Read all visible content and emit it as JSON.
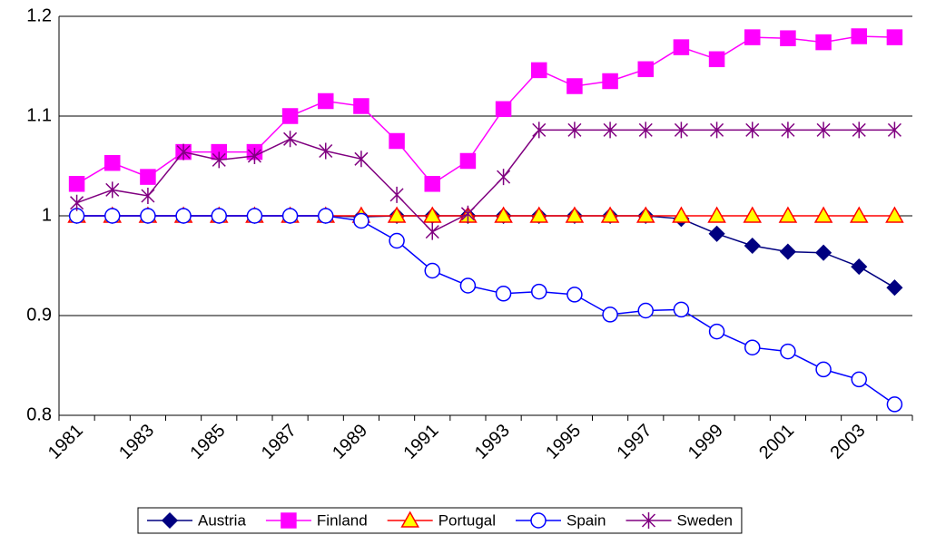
{
  "chart_data": {
    "type": "line",
    "categories": [
      "1981",
      null,
      "1983",
      null,
      "1985",
      null,
      "1987",
      null,
      "1989",
      null,
      "1991",
      null,
      "1993",
      null,
      "1995",
      null,
      "1997",
      null,
      "1999",
      null,
      "2001",
      null,
      "2003",
      null
    ],
    "series": [
      {
        "name": "Austria",
        "color": "#000080",
        "marker": "diamond",
        "marker_fill": "#000080",
        "values": [
          1,
          1,
          1,
          1,
          1,
          1,
          1,
          1,
          0.999,
          1,
          1,
          1,
          1,
          1,
          1,
          1,
          1,
          0.997,
          0.982,
          0.97,
          0.964,
          0.963,
          0.949,
          0.928
        ]
      },
      {
        "name": "Finland",
        "color": "#ff00ff",
        "marker": "square",
        "marker_fill": "#ff00ff",
        "values": [
          1.032,
          1.053,
          1.039,
          1.064,
          1.064,
          1.064,
          1.1,
          1.115,
          1.11,
          1.075,
          1.032,
          1.055,
          1.107,
          1.146,
          1.13,
          1.135,
          1.147,
          1.169,
          1.157,
          1.179,
          1.178,
          1.174,
          1.18,
          1.179
        ]
      },
      {
        "name": "Portugal",
        "color": "#ff0000",
        "marker": "triangle",
        "marker_fill": "#ffff00",
        "values": [
          1,
          1,
          1,
          1,
          1,
          1,
          1,
          1,
          1,
          1,
          1,
          1,
          1,
          1,
          1,
          1,
          1,
          1,
          1,
          1,
          1,
          1,
          1,
          1
        ]
      },
      {
        "name": "Spain",
        "color": "#0000ff",
        "marker": "circle",
        "marker_fill": "#ffffff",
        "values": [
          1,
          1,
          1,
          1,
          1,
          1,
          1,
          1,
          0.995,
          0.975,
          0.945,
          0.93,
          0.922,
          0.924,
          0.921,
          0.901,
          0.905,
          0.906,
          0.884,
          0.868,
          0.864,
          0.846,
          0.836,
          0.811
        ]
      },
      {
        "name": "Sweden",
        "color": "#800080",
        "marker": "star",
        "marker_fill": "none",
        "values": [
          1.013,
          1.026,
          1.02,
          1.064,
          1.056,
          1.06,
          1.077,
          1.065,
          1.057,
          1.021,
          0.984,
          1.002,
          1.039,
          1.086,
          1.086,
          1.086,
          1.086,
          1.086,
          1.086,
          1.086,
          1.086,
          1.086,
          1.086,
          1.086
        ]
      }
    ],
    "ylim": [
      0.8,
      1.2
    ],
    "yticks": [
      0.8,
      0.9,
      1,
      1.1,
      1.2
    ],
    "grid": true,
    "legend": "bottom"
  }
}
